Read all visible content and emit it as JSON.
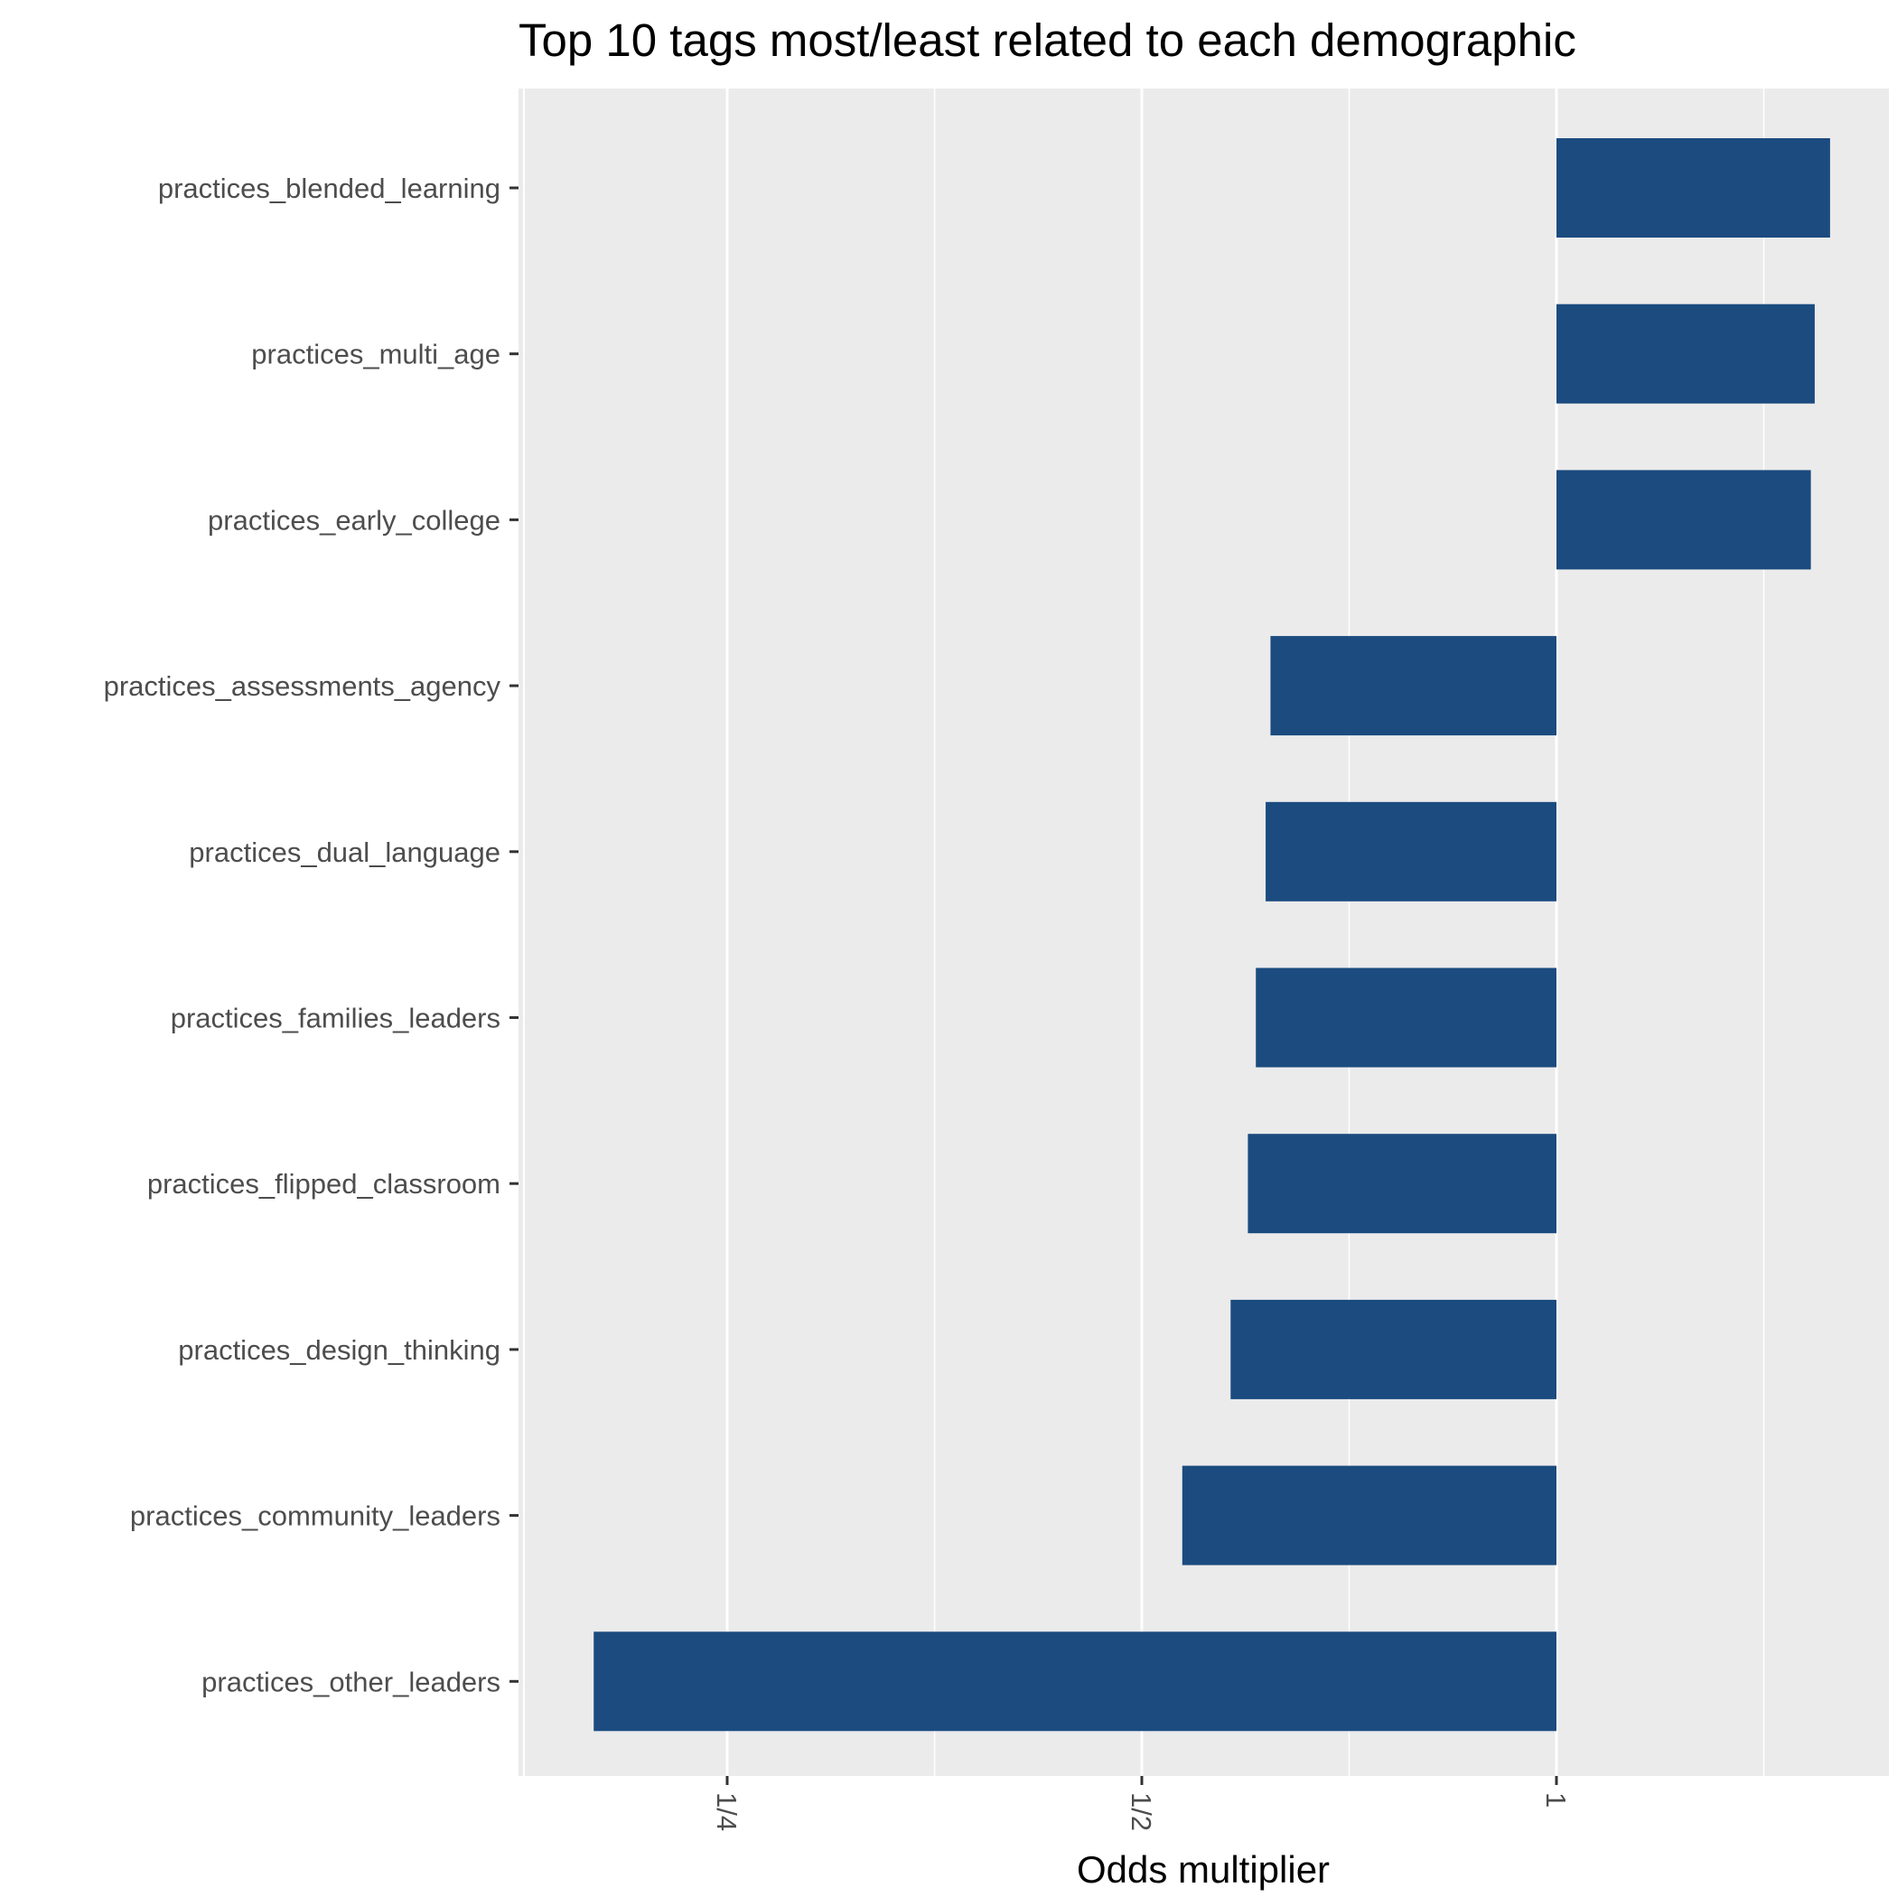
{
  "chart_data": {
    "type": "bar",
    "orientation": "horizontal",
    "title": "Top 10 tags most/least related to each demographic",
    "xlabel": "Odds multiplier",
    "ylabel": "",
    "x_scale": "log2",
    "xlim": [
      0.2,
      1.58
    ],
    "x_ticks": [
      {
        "value": 0.25,
        "label": "1/4"
      },
      {
        "value": 0.5,
        "label": "1/2"
      },
      {
        "value": 1,
        "label": "1"
      }
    ],
    "x_minor_ticks": [
      0.3536,
      0.7071,
      1.4142
    ],
    "baseline": 1,
    "grid": true,
    "bar_color": "#1b4b7f",
    "panel_color": "#ebebeb",
    "categories": [
      "practices_blended_learning",
      "practices_multi_age",
      "practices_early_college",
      "practices_assessments_agency",
      "practices_dual_language",
      "practices_families_leaders",
      "practices_flipped_classroom",
      "practices_design_thinking",
      "practices_community_leaders",
      "practices_other_leaders"
    ],
    "values": [
      1.58,
      1.54,
      1.53,
      0.62,
      0.615,
      0.605,
      0.597,
      0.58,
      0.535,
      0.2
    ]
  }
}
